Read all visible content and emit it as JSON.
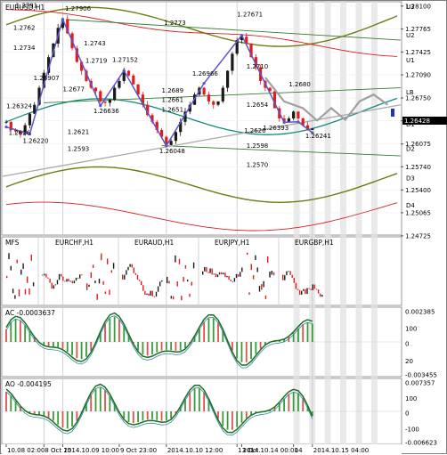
{
  "colors": {
    "bull": "#1a1a1a",
    "bear": "#e31b1b",
    "zigzag": "#5a55c8",
    "ma_teal": "#138a80",
    "ma_olive": "#6c7c12",
    "ma_red": "#d62020",
    "channel": "#2f7d2f",
    "trend": "#a9a9a9",
    "projection": "#a0a0a0",
    "shade": "#e2e2e2",
    "hist_pos": "#3a9a3a",
    "hist_neg": "#e05050"
  },
  "main": {
    "title": "EURUSD,H1",
    "current_price": "1.26428",
    "levels": [
      {
        "name": "U3",
        "price": 1.281
      },
      {
        "name": "U2",
        "price": 1.2768
      },
      {
        "name": "U1",
        "price": 1.2731
      },
      {
        "name": "LB",
        "price": 1.2684
      },
      {
        "name": "D1",
        "price": 1.2637
      },
      {
        "name": "D2",
        "price": 1.2601
      },
      {
        "name": "D3",
        "price": 1.2558
      },
      {
        "name": "D4",
        "price": 1.2518
      }
    ]
  },
  "chart_data": {
    "type": "line",
    "title": "EURUSD,H1",
    "ylim": [
      1.2475,
      1.2815
    ],
    "yticks": [
      "1.28100",
      "1.27765",
      "1.27425",
      "1.27090",
      "1.26750",
      "1.26415",
      "1.26075",
      "1.25740",
      "1.25400",
      "1.25065",
      "1.24725"
    ],
    "xticks": [
      "10.08 02:00",
      "8 Oct 15",
      "2014.10.09 10:00",
      "9 Oct 23:00",
      "2014.10.10 12:00",
      "13 Oct",
      "2014.10.14 00:00",
      "14",
      "2014.10.15 04:00"
    ],
    "closes": [
      1.264,
      1.2628,
      1.2626,
      1.2622,
      1.2635,
      1.2652,
      1.2665,
      1.269,
      1.2712,
      1.2735,
      1.2755,
      1.2778,
      1.2791,
      1.277,
      1.2748,
      1.2728,
      1.2715,
      1.27,
      1.269,
      1.2685,
      1.267,
      1.2668,
      1.2672,
      1.269,
      1.27,
      1.2715,
      1.2708,
      1.2695,
      1.268,
      1.2665,
      1.265,
      1.264,
      1.2628,
      1.2618,
      1.2606,
      1.2612,
      1.2625,
      1.264,
      1.2655,
      1.2665,
      1.268,
      1.269,
      1.268,
      1.267,
      1.2665,
      1.267,
      1.269,
      1.2715,
      1.274,
      1.276,
      1.2765,
      1.2755,
      1.2735,
      1.272,
      1.27,
      1.269,
      1.2685,
      1.266,
      1.2645,
      1.264,
      1.2645,
      1.2655,
      1.2645,
      1.2635,
      1.2628,
      1.263
    ],
    "zigzag": [
      {
        "x": 0,
        "y": 1.26324
      },
      {
        "x": 5,
        "y": 1.2622
      },
      {
        "x": 12,
        "y": 1.27906
      },
      {
        "x": 20,
        "y": 1.26636
      },
      {
        "x": 25,
        "y": 1.27152
      },
      {
        "x": 34,
        "y": 1.26048
      },
      {
        "x": 42,
        "y": 1.26966
      },
      {
        "x": 50,
        "y": 1.27671
      },
      {
        "x": 59,
        "y": 1.26393
      },
      {
        "x": 62,
        "y": 1.264
      },
      {
        "x": 65,
        "y": 1.26241
      }
    ],
    "projection": [
      {
        "x": 55,
        "y": 1.2705
      },
      {
        "x": 59,
        "y": 1.267
      },
      {
        "x": 63,
        "y": 1.266
      },
      {
        "x": 66,
        "y": 1.2642
      },
      {
        "x": 69,
        "y": 1.266
      },
      {
        "x": 72,
        "y": 1.2643
      },
      {
        "x": 75,
        "y": 1.267
      },
      {
        "x": 78,
        "y": 1.268
      },
      {
        "x": 81,
        "y": 1.2665
      }
    ],
    "annotations": [
      {
        "text": "1.2791",
        "x": 2,
        "y": 1.2808
      },
      {
        "text": "1.2762",
        "x": 1.5,
        "y": 1.2775
      },
      {
        "text": "1.2734",
        "x": 1.5,
        "y": 1.2746
      },
      {
        "text": "1.26324",
        "x": 0,
        "y": 1.266
      },
      {
        "text": "1.26907",
        "x": 5.8,
        "y": 1.2701
      },
      {
        "text": "1.2626",
        "x": 0.5,
        "y": 1.2621
      },
      {
        "text": "1.26220",
        "x": 3.5,
        "y": 1.2609
      },
      {
        "text": "1.27906",
        "x": 12.5,
        "y": 1.2803
      },
      {
        "text": "1.2743",
        "x": 16.5,
        "y": 1.2752
      },
      {
        "text": "1.2719",
        "x": 16.8,
        "y": 1.2727
      },
      {
        "text": "1.27152",
        "x": 22.5,
        "y": 1.2728
      },
      {
        "text": "1.2677",
        "x": 12,
        "y": 1.2685
      },
      {
        "text": "1.26636",
        "x": 18.5,
        "y": 1.2653
      },
      {
        "text": "1.2773",
        "x": 33.5,
        "y": 1.2782
      },
      {
        "text": "1.26966",
        "x": 39.5,
        "y": 1.2708
      },
      {
        "text": "1.2689",
        "x": 33,
        "y": 1.2683
      },
      {
        "text": "1.2661",
        "x": 33,
        "y": 1.2669
      },
      {
        "text": "1.2651",
        "x": 33,
        "y": 1.2655
      },
      {
        "text": "1.2621",
        "x": 13,
        "y": 1.2622
      },
      {
        "text": "1.2593",
        "x": 13,
        "y": 1.2597
      },
      {
        "text": "1.26048",
        "x": 32.5,
        "y": 1.2594
      },
      {
        "text": "1.27671",
        "x": 49,
        "y": 1.2795
      },
      {
        "text": "1.2710",
        "x": 51,
        "y": 1.2718
      },
      {
        "text": "1.2654",
        "x": 51,
        "y": 1.2662
      },
      {
        "text": "1.2626",
        "x": 50.5,
        "y": 1.2624
      },
      {
        "text": "1.26393",
        "x": 54.5,
        "y": 1.2628
      },
      {
        "text": "1.2598",
        "x": 51,
        "y": 1.2602
      },
      {
        "text": "1.2570",
        "x": 51,
        "y": 1.2574
      },
      {
        "text": "1.2680",
        "x": 60,
        "y": 1.2692
      },
      {
        "text": "1.26241",
        "x": 63.5,
        "y": 1.2616
      }
    ]
  },
  "pairs_panel": {
    "label": "MFS",
    "pairs": [
      "EURCHF,H1",
      "EURAUD,H1",
      "EURJPY,H1",
      "EURGBP,H1"
    ]
  },
  "ac_panel": {
    "title": "AC -0.0003637",
    "ticks": [
      "0.002385",
      "100",
      "0",
      "20",
      "-0.003455"
    ]
  },
  "ao_panel": {
    "title": "AO -0.004195",
    "ticks": [
      "0.007357",
      "100",
      "0",
      "-100",
      "-0.006623"
    ]
  }
}
